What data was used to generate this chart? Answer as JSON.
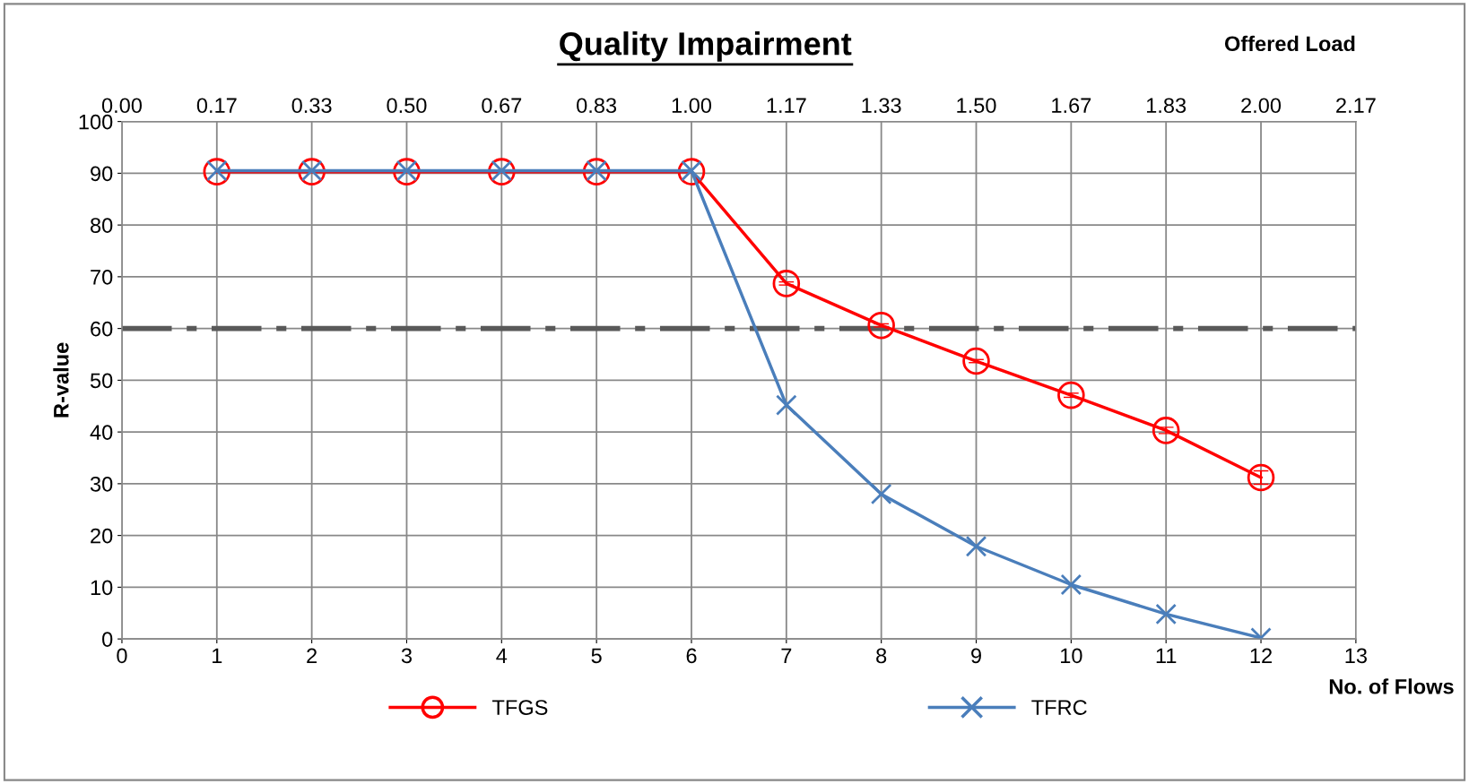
{
  "chart_data": {
    "type": "line",
    "title": "Quality Impairment",
    "xlabel": "No. of Flows",
    "ylabel": "R-value",
    "x2label": "Offered Load",
    "x": [
      1,
      2,
      3,
      4,
      5,
      6,
      7,
      8,
      9,
      10,
      11,
      12
    ],
    "series": [
      {
        "name": "TFGS",
        "color": "#ff0000",
        "marker": "circle",
        "values": [
          90.3,
          90.3,
          90.3,
          90.3,
          90.3,
          90.3,
          68.7,
          60.6,
          53.7,
          47.1,
          40.3,
          31.2
        ],
        "errors": [
          null,
          null,
          null,
          null,
          null,
          null,
          0.3,
          0.3,
          0.3,
          0.4,
          0.6,
          1.3
        ]
      },
      {
        "name": "TFRC",
        "color": "#4a7ebb",
        "marker": "cross",
        "values": [
          90.5,
          90.5,
          90.5,
          90.5,
          90.5,
          90.5,
          45.2,
          28.0,
          17.9,
          10.5,
          4.8,
          0.2
        ]
      }
    ],
    "xlim": [
      0,
      13
    ],
    "xticks": [
      0,
      1,
      2,
      3,
      4,
      5,
      6,
      7,
      8,
      9,
      10,
      11,
      12,
      13
    ],
    "x2lim": [
      0,
      2.1667
    ],
    "x2ticks": [
      {
        "value": 0,
        "label": "0.00"
      },
      {
        "value": 0.1667,
        "label": "0.17"
      },
      {
        "value": 0.3333,
        "label": "0.33"
      },
      {
        "value": 0.5,
        "label": "0.50"
      },
      {
        "value": 0.6667,
        "label": "0.67"
      },
      {
        "value": 0.8333,
        "label": "0.83"
      },
      {
        "value": 1,
        "label": "1.00"
      },
      {
        "value": 1.1667,
        "label": "1.17"
      },
      {
        "value": 1.3333,
        "label": "1.33"
      },
      {
        "value": 1.5,
        "label": "1.50"
      },
      {
        "value": 1.6667,
        "label": "1.67"
      },
      {
        "value": 1.8333,
        "label": "1.83"
      },
      {
        "value": 2,
        "label": "2.00"
      },
      {
        "value": 2.1667,
        "label": "2.17"
      }
    ],
    "ylim": [
      0,
      100
    ],
    "yticks": [
      0,
      10,
      20,
      30,
      40,
      50,
      60,
      70,
      80,
      90,
      100
    ],
    "ref_lines": [
      {
        "axis": "y",
        "value": 60,
        "color": "#595959",
        "line_style": "dashdot"
      }
    ],
    "grid": true,
    "legend": "bottom"
  }
}
